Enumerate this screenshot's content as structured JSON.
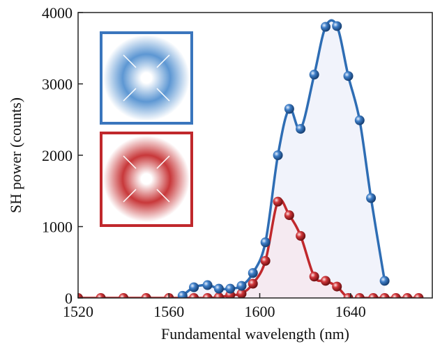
{
  "chart_data": {
    "type": "line",
    "xlabel": "Fundamental wavelength (nm)",
    "ylabel": "SH power  (counts)",
    "xlim": [
      1520,
      1676
    ],
    "ylim": [
      0,
      4000
    ],
    "xticks": [
      1520,
      1560,
      1600,
      1640
    ],
    "yticks": [
      0,
      1000,
      2000,
      3000,
      4000
    ],
    "series": [
      {
        "color": "#2e6db4",
        "fill": "#eef1fa",
        "x": [
          1566,
          1571,
          1577,
          1582,
          1587,
          1592,
          1597,
          1602.5,
          1608,
          1613,
          1618,
          1624,
          1629,
          1634,
          1639,
          1644,
          1649,
          1655
        ],
        "values": [
          30,
          150,
          180,
          130,
          130,
          170,
          350,
          780,
          2000,
          2650,
          2370,
          3130,
          3800,
          3810,
          3110,
          2490,
          1400,
          240
        ]
      },
      {
        "color": "#c0282c",
        "fill": "#f6e8ee",
        "x": [
          1520,
          1530,
          1540,
          1550,
          1560,
          1566,
          1571,
          1577,
          1582,
          1587,
          1592,
          1597,
          1602.5,
          1608,
          1613,
          1618,
          1624,
          1629,
          1634,
          1639,
          1644,
          1650,
          1655,
          1660,
          1665,
          1670
        ],
        "values": [
          0,
          0,
          0,
          0,
          0,
          0,
          0,
          0,
          10,
          40,
          60,
          200,
          520,
          1350,
          1160,
          870,
          300,
          240,
          160,
          0,
          0,
          0,
          0,
          0,
          0,
          0
        ]
      }
    ]
  }
}
